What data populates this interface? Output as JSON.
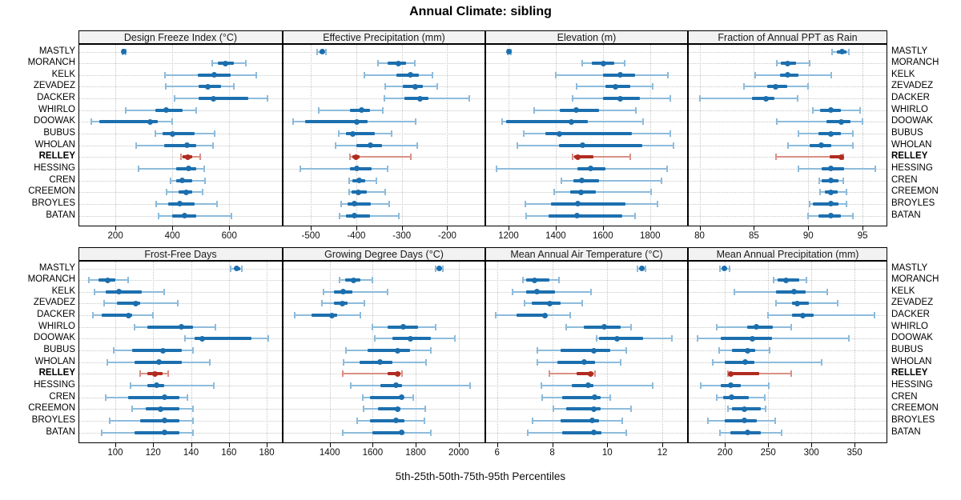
{
  "title": "Annual Climate: sibling",
  "caption": "5th-25th-50th-75th-95th Percentiles",
  "sites": [
    "MASTLY",
    "MORANCH",
    "KELK",
    "ZEVADEZ",
    "DACKER",
    "WHIRLO",
    "DOOWAK",
    "BUBUS",
    "WHOLAN",
    "RELLEY",
    "HESSING",
    "CREN",
    "CREEMON",
    "BROYLES",
    "BATAN"
  ],
  "highlight_site": "RELLEY",
  "percentiles": [
    5,
    25,
    50,
    75,
    95
  ],
  "colors": {
    "blue": "#1c6fae",
    "blue_light": "#8dbbdb",
    "red": "#b02c20",
    "red_light": "#d99086",
    "grid": "#c8c8c8",
    "strip_bg": "#f2f2f2",
    "border": "#000000"
  },
  "chart_data": [
    {
      "type": "dotplot-percentiles",
      "title": "Design Freeze Index (°C)",
      "grid_row": 0,
      "grid_col": 0,
      "xlim": [
        73,
        785
      ],
      "ticks": [
        200,
        400,
        600
      ],
      "values": [
        [
          224,
          228,
          230,
          233,
          236
        ],
        [
          539,
          559,
          586,
          615,
          659
        ],
        [
          375,
          489,
          547,
          604,
          695
        ],
        [
          377,
          493,
          526,
          572,
          617
        ],
        [
          409,
          493,
          544,
          667,
          735
        ],
        [
          235,
          340,
          377,
          437,
          484
        ],
        [
          116,
          144,
          323,
          349,
          400
        ],
        [
          340,
          367,
          400,
          479,
          549
        ],
        [
          274,
          372,
          451,
          484,
          542
        ],
        [
          430,
          437,
          453,
          470,
          498
        ],
        [
          282,
          414,
          456,
          484,
          512
        ],
        [
          394,
          414,
          435,
          470,
          514
        ],
        [
          381,
          423,
          449,
          470,
          505
        ],
        [
          344,
          386,
          425,
          479,
          556
        ],
        [
          353,
          400,
          444,
          484,
          609
        ]
      ]
    },
    {
      "type": "dotplot-percentiles",
      "title": "Effective Precipitation (mm)",
      "grid_row": 0,
      "grid_col": 1,
      "xlim": [
        -560,
        -118
      ],
      "ticks": [
        -500,
        -400,
        -300,
        -200
      ],
      "values": [
        [
          -486,
          -480,
          -475,
          -470,
          -467
        ],
        [
          -352,
          -331,
          -308,
          -291,
          -272
        ],
        [
          -383,
          -312,
          -281,
          -262,
          -233
        ],
        [
          -337,
          -297,
          -270,
          -253,
          -222
        ],
        [
          -338,
          -294,
          -259,
          -241,
          -151
        ],
        [
          -483,
          -413,
          -388,
          -369,
          -341
        ],
        [
          -538,
          -512,
          -398,
          -375,
          -269
        ],
        [
          -438,
          -422,
          -407,
          -360,
          -323
        ],
        [
          -446,
          -399,
          -369,
          -344,
          -266
        ],
        [
          -413,
          -409,
          -401,
          -392,
          -280
        ],
        [
          -523,
          -413,
          -399,
          -366,
          -331
        ],
        [
          -416,
          -409,
          -394,
          -381,
          -356
        ],
        [
          -416,
          -411,
          -396,
          -376,
          -336
        ],
        [
          -434,
          -419,
          -404,
          -368,
          -328
        ],
        [
          -436,
          -422,
          -405,
          -369,
          -306
        ]
      ]
    },
    {
      "type": "dotplot-percentiles",
      "title": "Elevation (m)",
      "grid_row": 0,
      "grid_col": 2,
      "xlim": [
        1105,
        1957
      ],
      "ticks": [
        1200,
        1400,
        1600,
        1800
      ],
      "values": [
        [
          1196,
          1200,
          1203,
          1207,
          1211
        ],
        [
          1512,
          1554,
          1601,
          1649,
          1692
        ],
        [
          1402,
          1602,
          1672,
          1737,
          1877
        ],
        [
          1487,
          1610,
          1653,
          1717,
          1810
        ],
        [
          1470,
          1602,
          1672,
          1756,
          1885
        ],
        [
          1307,
          1416,
          1487,
          1584,
          1739
        ],
        [
          1172,
          1191,
          1467,
          1537,
          1771
        ],
        [
          1265,
          1355,
          1417,
          1722,
          1885
        ],
        [
          1237,
          1413,
          1515,
          1767,
          1899
        ],
        [
          1472,
          1478,
          1494,
          1560,
          1717
        ],
        [
          1149,
          1492,
          1548,
          1610,
          1872
        ],
        [
          1425,
          1475,
          1512,
          1582,
          1849
        ],
        [
          1393,
          1461,
          1506,
          1569,
          1804
        ],
        [
          1273,
          1380,
          1494,
          1697,
          1833
        ],
        [
          1276,
          1369,
          1489,
          1683,
          1737
        ]
      ]
    },
    {
      "type": "dotplot-percentiles",
      "title": "Fraction of Annual PPT as Rain",
      "grid_row": 0,
      "grid_col": 3,
      "xlim": [
        79,
        97.2
      ],
      "ticks": [
        80,
        85,
        90,
        95
      ],
      "values": [
        [
          92.2,
          92.6,
          93.1,
          93.5,
          93.7
        ],
        [
          87.1,
          87.5,
          88.1,
          88.9,
          90.1
        ],
        [
          85.1,
          87.4,
          88.1,
          89.1,
          92.1
        ],
        [
          84.1,
          86.2,
          87.0,
          88.1,
          90.0
        ],
        [
          80.0,
          84.8,
          86.1,
          86.9,
          89.0
        ],
        [
          90.4,
          91.1,
          92.1,
          93.0,
          94.8
        ],
        [
          87.1,
          91.7,
          93.0,
          93.9,
          95.0
        ],
        [
          89.1,
          90.9,
          92.1,
          93.0,
          94.1
        ],
        [
          88.1,
          90.1,
          91.2,
          92.1,
          94.1
        ],
        [
          87.0,
          92.0,
          93.0,
          93.1,
          93.2
        ],
        [
          89.1,
          91.2,
          92.1,
          93.3,
          96.2
        ],
        [
          91.0,
          91.2,
          92.1,
          92.8,
          93.2
        ],
        [
          91.1,
          91.5,
          92.1,
          92.7,
          93.5
        ],
        [
          90.1,
          90.4,
          92.1,
          92.8,
          93.5
        ],
        [
          90.0,
          90.9,
          92.1,
          93.0,
          94.1
        ]
      ]
    },
    {
      "type": "dotplot-percentiles",
      "title": "Frost-Free Days",
      "grid_row": 1,
      "grid_col": 0,
      "xlim": [
        81,
        188
      ],
      "ticks": [
        100,
        120,
        140,
        160,
        180
      ],
      "values": [
        [
          161,
          163,
          164,
          166,
          167
        ],
        [
          86,
          91,
          96,
          100,
          107
        ],
        [
          89,
          95,
          102,
          114,
          126
        ],
        [
          94,
          101,
          111,
          113,
          133
        ],
        [
          88,
          93,
          107,
          109,
          120
        ],
        [
          110,
          117,
          135,
          141,
          153
        ],
        [
          137,
          142,
          146,
          172,
          181
        ],
        [
          99,
          109,
          125,
          135,
          141
        ],
        [
          96,
          110,
          123,
          135,
          150
        ],
        [
          113,
          117,
          121,
          125,
          128
        ],
        [
          108,
          117,
          122,
          126,
          152
        ],
        [
          95,
          107,
          126,
          134,
          138
        ],
        [
          109,
          116,
          124,
          134,
          141
        ],
        [
          97,
          113,
          126,
          134,
          141
        ],
        [
          93,
          110,
          126,
          134,
          141
        ]
      ]
    },
    {
      "type": "dotplot-percentiles",
      "title": "Growing Degree Days (°C)",
      "grid_row": 1,
      "grid_col": 1,
      "xlim": [
        1185,
        2120
      ],
      "ticks": [
        1400,
        1600,
        1800,
        2000
      ],
      "values": [
        [
          1894,
          1901,
          1908,
          1916,
          1927
        ],
        [
          1446,
          1470,
          1511,
          1544,
          1600
        ],
        [
          1372,
          1421,
          1462,
          1504,
          1668
        ],
        [
          1363,
          1421,
          1458,
          1483,
          1560
        ],
        [
          1236,
          1316,
          1409,
          1433,
          1544
        ],
        [
          1598,
          1668,
          1742,
          1810,
          1894
        ],
        [
          1610,
          1693,
          1777,
          1872,
          1983
        ],
        [
          1477,
          1575,
          1717,
          1773,
          1869
        ],
        [
          1464,
          1538,
          1635,
          1693,
          1847
        ],
        [
          1462,
          1668,
          1714,
          1728,
          1736
        ],
        [
          1499,
          1637,
          1709,
          1736,
          2054
        ],
        [
          1553,
          1588,
          1733,
          1742,
          1788
        ],
        [
          1557,
          1625,
          1717,
          1730,
          1844
        ],
        [
          1526,
          1588,
          1709,
          1748,
          1841
        ],
        [
          1462,
          1600,
          1733,
          1748,
          1869
        ]
      ]
    },
    {
      "type": "dotplot-percentiles",
      "title": "Mean Annual Air Temperature (°C)",
      "grid_row": 1,
      "grid_col": 2,
      "xlim": [
        5.6,
        12.9
      ],
      "ticks": [
        6,
        8,
        10,
        12
      ],
      "values": [
        [
          11.1,
          11.2,
          11.25,
          11.3,
          11.4
        ],
        [
          6.95,
          7.05,
          7.35,
          7.9,
          8.25
        ],
        [
          6.55,
          7.05,
          7.45,
          8.1,
          9.4
        ],
        [
          7.0,
          7.25,
          7.9,
          8.3,
          9.1
        ],
        [
          5.95,
          6.7,
          7.75,
          7.8,
          8.65
        ],
        [
          8.5,
          9.15,
          9.9,
          10.5,
          10.85
        ],
        [
          9.6,
          9.7,
          10.35,
          11.3,
          12.35
        ],
        [
          7.45,
          8.3,
          9.5,
          10.1,
          10.7
        ],
        [
          7.45,
          8.2,
          9.15,
          9.55,
          10.5
        ],
        [
          7.9,
          8.9,
          9.4,
          9.5,
          9.55
        ],
        [
          7.6,
          8.7,
          9.3,
          9.5,
          11.65
        ],
        [
          7.65,
          8.35,
          9.55,
          9.75,
          10.1
        ],
        [
          8.05,
          8.5,
          9.5,
          9.75,
          10.85
        ],
        [
          7.3,
          8.3,
          9.45,
          9.7,
          10.55
        ],
        [
          7.1,
          8.35,
          9.5,
          9.8,
          10.7
        ]
      ]
    },
    {
      "type": "dotplot-percentiles",
      "title": "Mean Annual Precipitation (mm)",
      "grid_row": 1,
      "grid_col": 3,
      "xlim": [
        158,
        387
      ],
      "ticks": [
        200,
        250,
        300,
        350
      ],
      "values": [
        [
          194,
          197,
          199,
          202,
          205
        ],
        [
          256,
          261,
          271,
          286,
          294
        ],
        [
          211,
          259,
          280,
          293,
          318
        ],
        [
          259,
          278,
          284,
          297,
          330
        ],
        [
          250,
          278,
          290,
          303,
          373
        ],
        [
          190,
          226,
          236,
          255,
          277
        ],
        [
          168,
          195,
          232,
          254,
          343
        ],
        [
          193,
          208,
          226,
          235,
          252
        ],
        [
          186,
          200,
          223,
          234,
          312
        ],
        [
          203,
          206,
          207,
          240,
          277
        ],
        [
          172,
          195,
          207,
          218,
          251
        ],
        [
          190,
          198,
          208,
          228,
          246
        ],
        [
          203,
          208,
          222,
          241,
          247
        ],
        [
          180,
          200,
          222,
          237,
          258
        ],
        [
          194,
          206,
          226,
          241,
          266
        ]
      ]
    }
  ]
}
